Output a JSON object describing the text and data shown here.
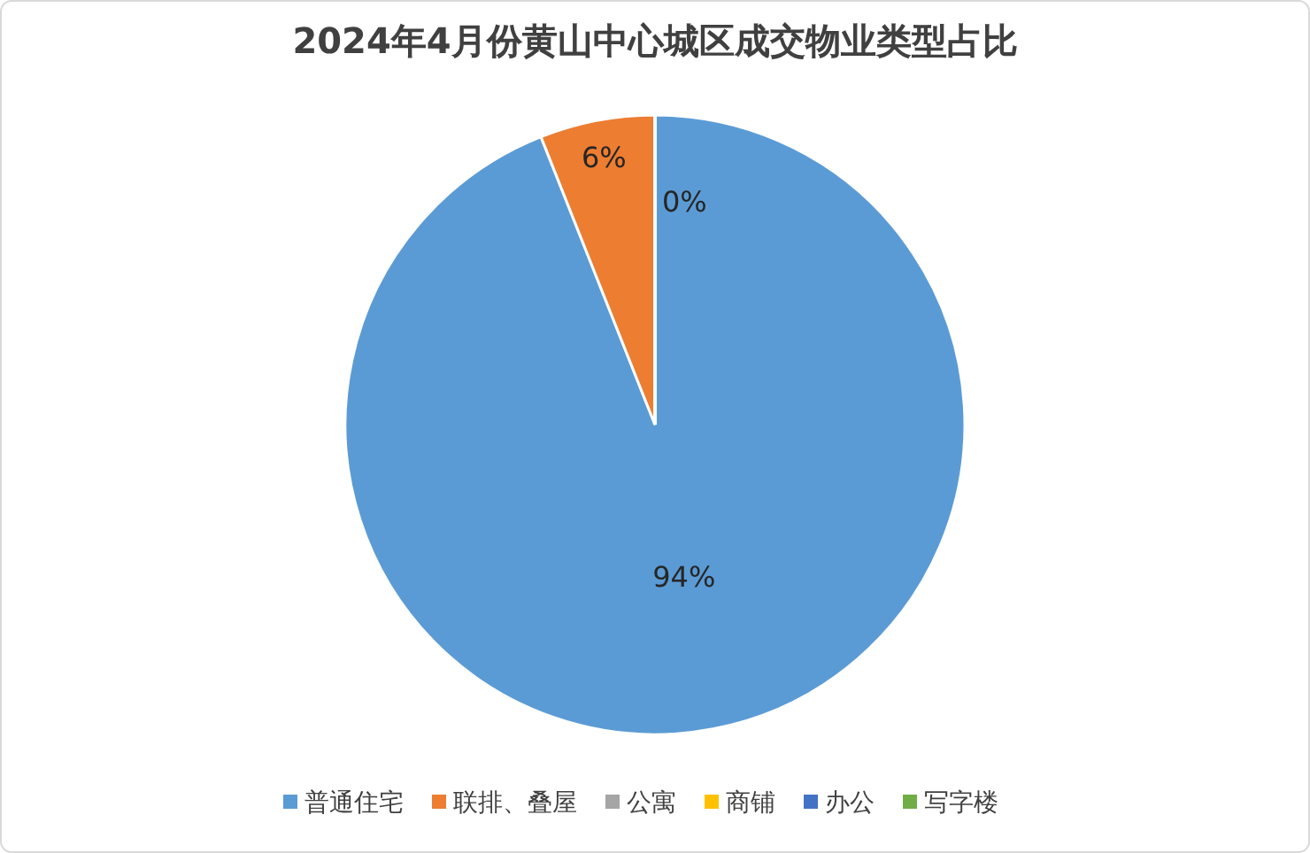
{
  "chart_data": {
    "type": "pie",
    "title": "2024年4月份黄山中心城区成交物业类型占比",
    "categories": [
      "普通住宅",
      "联排、叠屋",
      "公寓",
      "商铺",
      "办公",
      "写字楼"
    ],
    "values": [
      94,
      6,
      0,
      0,
      0,
      0
    ],
    "colors": [
      "#5b9bd5",
      "#ed7d31",
      "#a5a5a5",
      "#ffc000",
      "#4472c4",
      "#70ad47"
    ],
    "value_labels": [
      "94%",
      "6%",
      "0%",
      null,
      null,
      null
    ],
    "legend": "bottom"
  }
}
